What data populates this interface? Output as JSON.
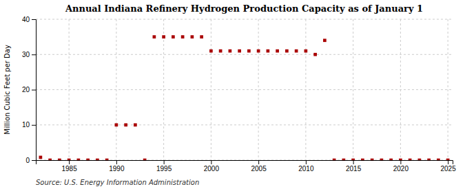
{
  "chart_data": {
    "type": "scatter",
    "title": "Annual Indiana Refinery Hydrogen Production Capacity as of January 1",
    "ylabel": "Million Cubic Feet per Day",
    "source": "Source: U.S. Energy Information Administration",
    "x": [
      1982,
      1983,
      1984,
      1985,
      1986,
      1987,
      1988,
      1989,
      1990,
      1991,
      1992,
      1993,
      1994,
      1995,
      1996,
      1997,
      1998,
      1999,
      2000,
      2001,
      2002,
      2003,
      2004,
      2005,
      2006,
      2007,
      2008,
      2009,
      2010,
      2011,
      2012,
      2013,
      2014,
      2015,
      2016,
      2017,
      2018,
      2019,
      2020,
      2021,
      2022,
      2023,
      2024,
      2025
    ],
    "values": [
      0.8,
      0,
      0,
      0,
      0,
      0,
      0,
      0,
      10,
      10,
      10,
      0,
      35,
      35,
      35,
      35,
      35,
      35,
      31,
      31,
      31,
      31,
      31,
      31,
      31,
      31,
      31,
      31,
      31,
      30,
      34,
      0,
      0,
      0,
      0,
      0,
      0,
      0,
      0,
      0,
      0,
      0,
      0,
      0
    ],
    "color": "#aa0000",
    "marker": "square",
    "xlim": [
      1981.5,
      2025.5
    ],
    "ylim": [
      0,
      40
    ],
    "xticks": [
      1985,
      1990,
      1995,
      2000,
      2005,
      2010,
      2015,
      2020,
      2025
    ],
    "yticks": [
      0,
      10,
      20,
      30,
      40
    ],
    "grid": true
  }
}
